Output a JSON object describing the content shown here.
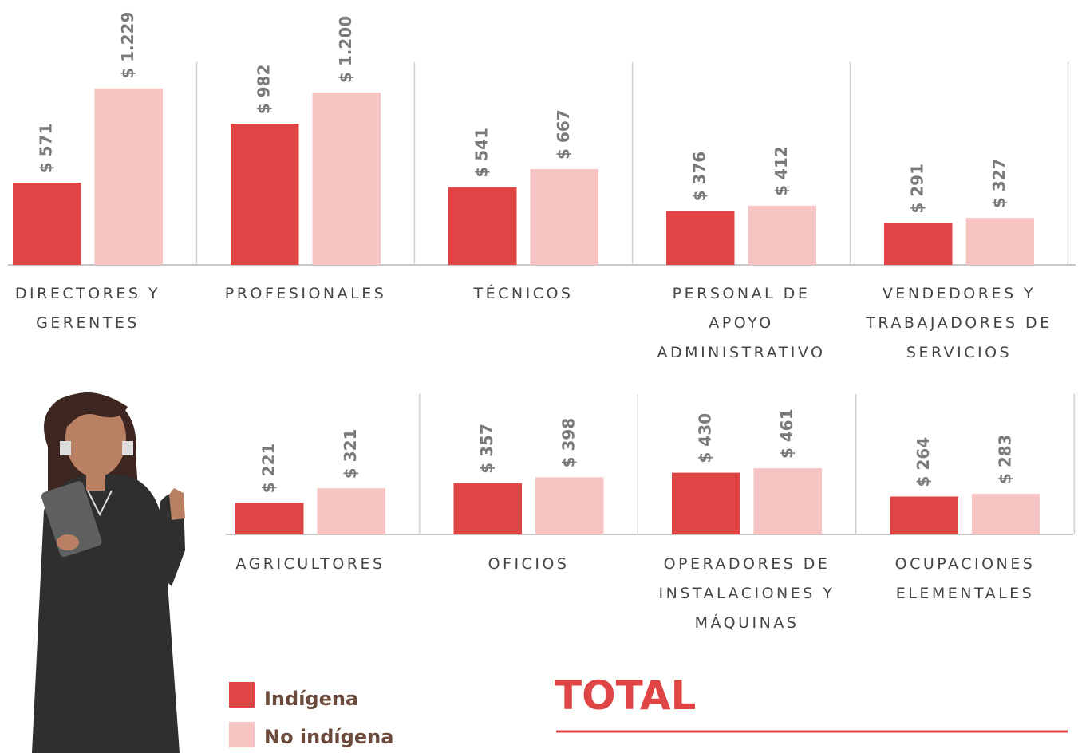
{
  "chart_data": [
    {
      "type": "bar",
      "categories": [
        "DIRECTORES Y GERENTES",
        "PROFESIONALES",
        "TÉCNICOS",
        "PERSONAL DE APOYO ADMINISTRATIVO",
        "VENDEDORES Y TRABAJADORES DE SERVICIOS"
      ],
      "series": [
        {
          "name": "Indígena",
          "color": "#e04545",
          "values": [
            571,
            982,
            541,
            376,
            291
          ],
          "value_labels": [
            "$ 571",
            "$ 982",
            "$ 541",
            "$ 376",
            "$ 291"
          ]
        },
        {
          "name": "No indígena",
          "color": "#f5c4c3",
          "values": [
            1229,
            1200,
            667,
            412,
            327
          ],
          "value_labels": [
            "$ 1.229",
            "$ 1.200",
            "$ 667",
            "$ 412",
            "$ 327"
          ]
        }
      ]
    },
    {
      "type": "bar",
      "categories": [
        "AGRICULTORES",
        "OFICIOS",
        "OPERADORES DE INSTALACIONES Y MÁQUINAS",
        "OCUPACIONES ELEMENTALES"
      ],
      "series": [
        {
          "name": "Indígena",
          "color": "#e04545",
          "values": [
            221,
            357,
            430,
            264
          ],
          "value_labels": [
            "$ 221",
            "$ 357",
            "$ 430",
            "$ 264"
          ]
        },
        {
          "name": "No indígena",
          "color": "#f5c4c3",
          "values": [
            321,
            398,
            461,
            283
          ],
          "value_labels": [
            "$ 321",
            "$ 398",
            "$ 461",
            "$ 283"
          ]
        }
      ]
    }
  ],
  "total": {
    "title": "TOTAL"
  }
}
